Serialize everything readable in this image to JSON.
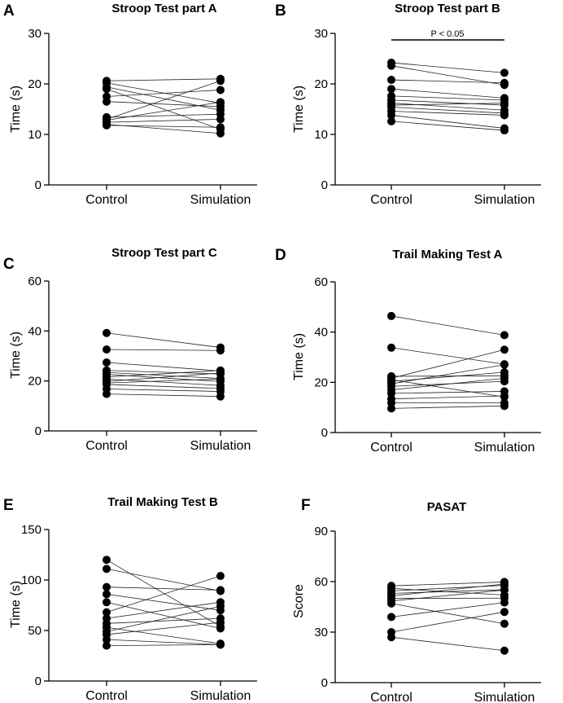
{
  "chart_data": [
    {
      "panel": "A",
      "type": "scatter",
      "title": "Stroop Test part A",
      "xlabel": "",
      "ylabel": "Time (s)",
      "categories": [
        "Control",
        "Simulation"
      ],
      "ylim": [
        0,
        30
      ],
      "yticks": [
        0,
        10,
        20,
        30
      ],
      "pairs": [
        [
          20.6,
          21.0
        ],
        [
          20.2,
          16.2
        ],
        [
          19.4,
          14.8
        ],
        [
          19.0,
          11.0
        ],
        [
          17.5,
          18.8
        ],
        [
          16.5,
          15.5
        ],
        [
          13.4,
          14.0
        ],
        [
          13.0,
          20.6
        ],
        [
          12.8,
          16.4
        ],
        [
          12.4,
          13.0
        ],
        [
          12.0,
          10.2
        ],
        [
          11.8,
          11.4
        ]
      ],
      "annotation": ""
    },
    {
      "panel": "B",
      "type": "scatter",
      "title": "Stroop Test part B",
      "xlabel": "",
      "ylabel": "Time (s)",
      "categories": [
        "Control",
        "Simulation"
      ],
      "ylim": [
        0,
        30
      ],
      "yticks": [
        0,
        10,
        20,
        30
      ],
      "pairs": [
        [
          24.2,
          22.2
        ],
        [
          23.6,
          19.8
        ],
        [
          20.8,
          20.2
        ],
        [
          19.0,
          17.2
        ],
        [
          17.6,
          16.8
        ],
        [
          16.8,
          15.8
        ],
        [
          16.2,
          14.8
        ],
        [
          15.8,
          16.2
        ],
        [
          15.4,
          14.2
        ],
        [
          14.6,
          13.8
        ],
        [
          13.8,
          11.2
        ],
        [
          12.6,
          10.8
        ]
      ],
      "annotation": "P < 0.05"
    },
    {
      "panel": "C",
      "type": "scatter",
      "title": "Stroop Test part C",
      "xlabel": "",
      "ylabel": "Time (s)",
      "categories": [
        "Control",
        "Simulation"
      ],
      "ylim": [
        0,
        60
      ],
      "yticks": [
        0,
        20,
        40,
        60
      ],
      "pairs": [
        [
          39.2,
          33.4
        ],
        [
          32.6,
          32.2
        ],
        [
          27.4,
          24.0
        ],
        [
          24.2,
          22.8
        ],
        [
          23.4,
          21.0
        ],
        [
          22.6,
          19.8
        ],
        [
          21.6,
          24.2
        ],
        [
          20.8,
          18.2
        ],
        [
          19.8,
          23.2
        ],
        [
          19.2,
          20.8
        ],
        [
          18.6,
          17.0
        ],
        [
          16.8,
          15.8
        ],
        [
          14.8,
          13.8
        ]
      ],
      "annotation": ""
    },
    {
      "panel": "D",
      "type": "scatter",
      "title": "Trail Making Test A",
      "xlabel": "",
      "ylabel": "Time (s)",
      "categories": [
        "Control",
        "Simulation"
      ],
      "ylim": [
        0,
        60
      ],
      "yticks": [
        0,
        20,
        40,
        60
      ],
      "pairs": [
        [
          46.4,
          38.8
        ],
        [
          33.8,
          27.2
        ],
        [
          22.4,
          22.6
        ],
        [
          21.6,
          33.0
        ],
        [
          21.0,
          14.2
        ],
        [
          20.4,
          24.0
        ],
        [
          19.4,
          27.0
        ],
        [
          18.4,
          20.4
        ],
        [
          17.0,
          21.6
        ],
        [
          15.6,
          16.4
        ],
        [
          13.4,
          14.6
        ],
        [
          11.8,
          11.8
        ],
        [
          9.6,
          10.6
        ]
      ],
      "annotation": ""
    },
    {
      "panel": "E",
      "type": "scatter",
      "title": "Trail Making Test B",
      "xlabel": "",
      "ylabel": "Time (s)",
      "categories": [
        "Control",
        "Simulation"
      ],
      "ylim": [
        0,
        150
      ],
      "yticks": [
        0,
        50,
        100,
        150
      ],
      "pairs": [
        [
          120,
          54
        ],
        [
          111,
          89
        ],
        [
          93,
          90
        ],
        [
          86,
          70
        ],
        [
          78,
          52
        ],
        [
          68,
          104
        ],
        [
          62,
          78
        ],
        [
          57,
          62
        ],
        [
          53,
          37
        ],
        [
          49,
          74
        ],
        [
          46,
          58
        ],
        [
          41,
          36
        ],
        [
          35,
          36
        ]
      ],
      "annotation": ""
    },
    {
      "panel": "F",
      "type": "scatter",
      "title": "PASAT",
      "xlabel": "",
      "ylabel": "Score",
      "categories": [
        "Control",
        "Simulation"
      ],
      "ylim": [
        0,
        90
      ],
      "yticks": [
        0,
        30,
        60,
        90
      ],
      "pairs": [
        [
          57.5,
          59.8
        ],
        [
          56.0,
          52.0
        ],
        [
          54.5,
          57.8
        ],
        [
          53.0,
          55.2
        ],
        [
          51.5,
          58.6
        ],
        [
          50.0,
          50.2
        ],
        [
          48.5,
          55.0
        ],
        [
          47.0,
          35.0
        ],
        [
          39.0,
          47.6
        ],
        [
          30.0,
          42.0
        ],
        [
          27.0,
          19.0
        ]
      ],
      "annotation": ""
    }
  ]
}
